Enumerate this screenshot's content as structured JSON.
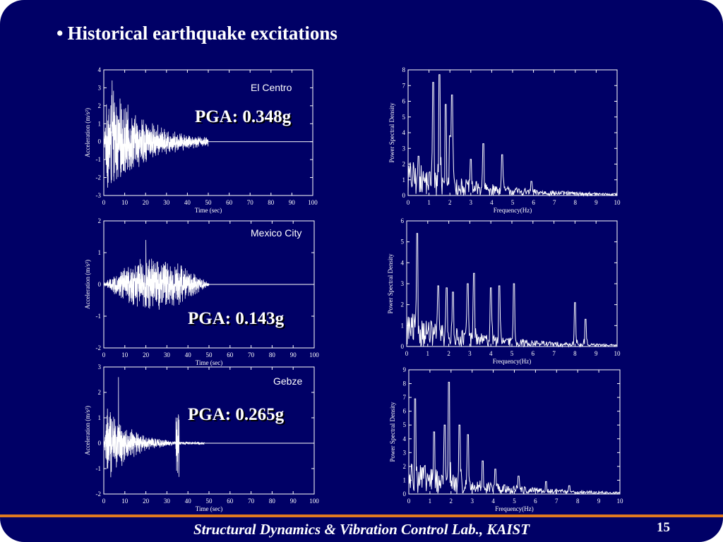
{
  "slide": {
    "bullet": "•",
    "title": "Historical earthquake excitations",
    "footer": "Structural Dynamics & Vibration Control Lab., KAIST",
    "page_number": "15",
    "colors": {
      "background": "#000066",
      "accent_line": "#e07a20",
      "trace": "#ffffff"
    }
  },
  "chart_data": [
    {
      "id": "elcentro-time",
      "type": "line",
      "station": "El Centro",
      "annotation": "PGA: 0.348g",
      "xlabel": "Time (sec)",
      "ylabel": "Acceleration (m/s²)",
      "xlim": [
        0,
        100
      ],
      "ylim": [
        -3,
        4
      ],
      "xticks": [
        0,
        10,
        20,
        30,
        40,
        50,
        60,
        70,
        80,
        90,
        100
      ],
      "yticks": [
        -3,
        -2,
        -1,
        0,
        1,
        2,
        3,
        4
      ],
      "signal": {
        "duration": 50,
        "peak_time": 4,
        "peak_value": 3.41,
        "envelope_decay": 12,
        "max_amplitude": 3.4
      }
    },
    {
      "id": "elcentro-psd",
      "type": "line",
      "xlabel": "Frequency(Hz)",
      "ylabel": "Power Spectral Density",
      "xlim": [
        0,
        10
      ],
      "ylim": [
        0,
        8
      ],
      "xticks": [
        0,
        1,
        2,
        3,
        4,
        5,
        6,
        7,
        8,
        9,
        10
      ],
      "yticks": [
        0,
        1,
        2,
        3,
        4,
        5,
        6,
        7,
        8
      ],
      "peaks": [
        [
          1.2,
          7.2
        ],
        [
          1.5,
          7.7
        ],
        [
          1.8,
          5.8
        ],
        [
          2.1,
          6.4
        ],
        [
          2.0,
          3.8
        ],
        [
          3.6,
          3.3
        ],
        [
          4.5,
          2.6
        ],
        [
          3.0,
          2.3
        ],
        [
          0.5,
          2.5
        ],
        [
          5.9,
          0.9
        ]
      ]
    },
    {
      "id": "mexico-time",
      "type": "line",
      "station": "Mexico City",
      "annotation": "PGA: 0.143g",
      "xlabel": "Time (sec)",
      "ylabel": "Acceleration (m/s²)",
      "xlim": [
        0,
        100
      ],
      "ylim": [
        -2,
        2
      ],
      "xticks": [
        0,
        10,
        20,
        30,
        40,
        50,
        60,
        70,
        80,
        90,
        100
      ],
      "yticks": [
        -2,
        -1,
        0,
        1,
        2
      ],
      "signal": {
        "duration": 50,
        "peak_time": 20,
        "peak_value": 1.4,
        "envelope_decay": 0,
        "max_amplitude": 1.0
      }
    },
    {
      "id": "mexico-psd",
      "type": "line",
      "xlabel": "Frequency(Hz)",
      "ylabel": "Power Spectral Density",
      "xlim": [
        0,
        10
      ],
      "ylim": [
        0,
        6
      ],
      "xticks": [
        0,
        1,
        2,
        3,
        4,
        5,
        6,
        7,
        8,
        9,
        10
      ],
      "yticks": [
        0,
        1,
        2,
        3,
        4,
        5,
        6
      ],
      "peaks": [
        [
          0.5,
          5.4
        ],
        [
          1.5,
          2.9
        ],
        [
          1.9,
          2.8
        ],
        [
          2.2,
          2.6
        ],
        [
          2.9,
          3.0
        ],
        [
          3.2,
          3.5
        ],
        [
          4.0,
          2.8
        ],
        [
          4.4,
          2.9
        ],
        [
          5.1,
          3.0
        ],
        [
          8.0,
          2.1
        ],
        [
          8.5,
          1.3
        ]
      ]
    },
    {
      "id": "gebze-time",
      "type": "line",
      "station": "Gebze",
      "annotation": "PGA: 0.265g",
      "xlabel": "Time (sec)",
      "ylabel": "Acceleration (m/s²)",
      "xlim": [
        0,
        100
      ],
      "ylim": [
        -2,
        3
      ],
      "xticks": [
        0,
        10,
        20,
        30,
        40,
        50,
        60,
        70,
        80,
        90,
        100
      ],
      "yticks": [
        -2,
        -1,
        0,
        1,
        2,
        3
      ],
      "signal": {
        "duration": 48,
        "peak_time": 7,
        "peak_value": 2.6,
        "envelope_decay": 7,
        "max_amplitude": 1.7,
        "secondary_time": 35,
        "secondary_value": 0.9
      }
    },
    {
      "id": "gebze-psd",
      "type": "line",
      "xlabel": "Frequency(Hz)",
      "ylabel": "Power Spectral Density",
      "xlim": [
        0,
        10
      ],
      "ylim": [
        0,
        9
      ],
      "xticks": [
        0,
        1,
        2,
        3,
        4,
        5,
        6,
        7,
        8,
        9,
        10
      ],
      "yticks": [
        0,
        1,
        2,
        3,
        4,
        5,
        6,
        7,
        8,
        9
      ],
      "peaks": [
        [
          0.3,
          6.9
        ],
        [
          1.2,
          4.5
        ],
        [
          1.7,
          5.0
        ],
        [
          1.9,
          8.1
        ],
        [
          2.4,
          5.0
        ],
        [
          2.8,
          4.3
        ],
        [
          3.5,
          2.4
        ],
        [
          4.1,
          1.8
        ],
        [
          5.2,
          1.3
        ],
        [
          6.5,
          0.9
        ],
        [
          7.6,
          0.6
        ]
      ]
    }
  ]
}
